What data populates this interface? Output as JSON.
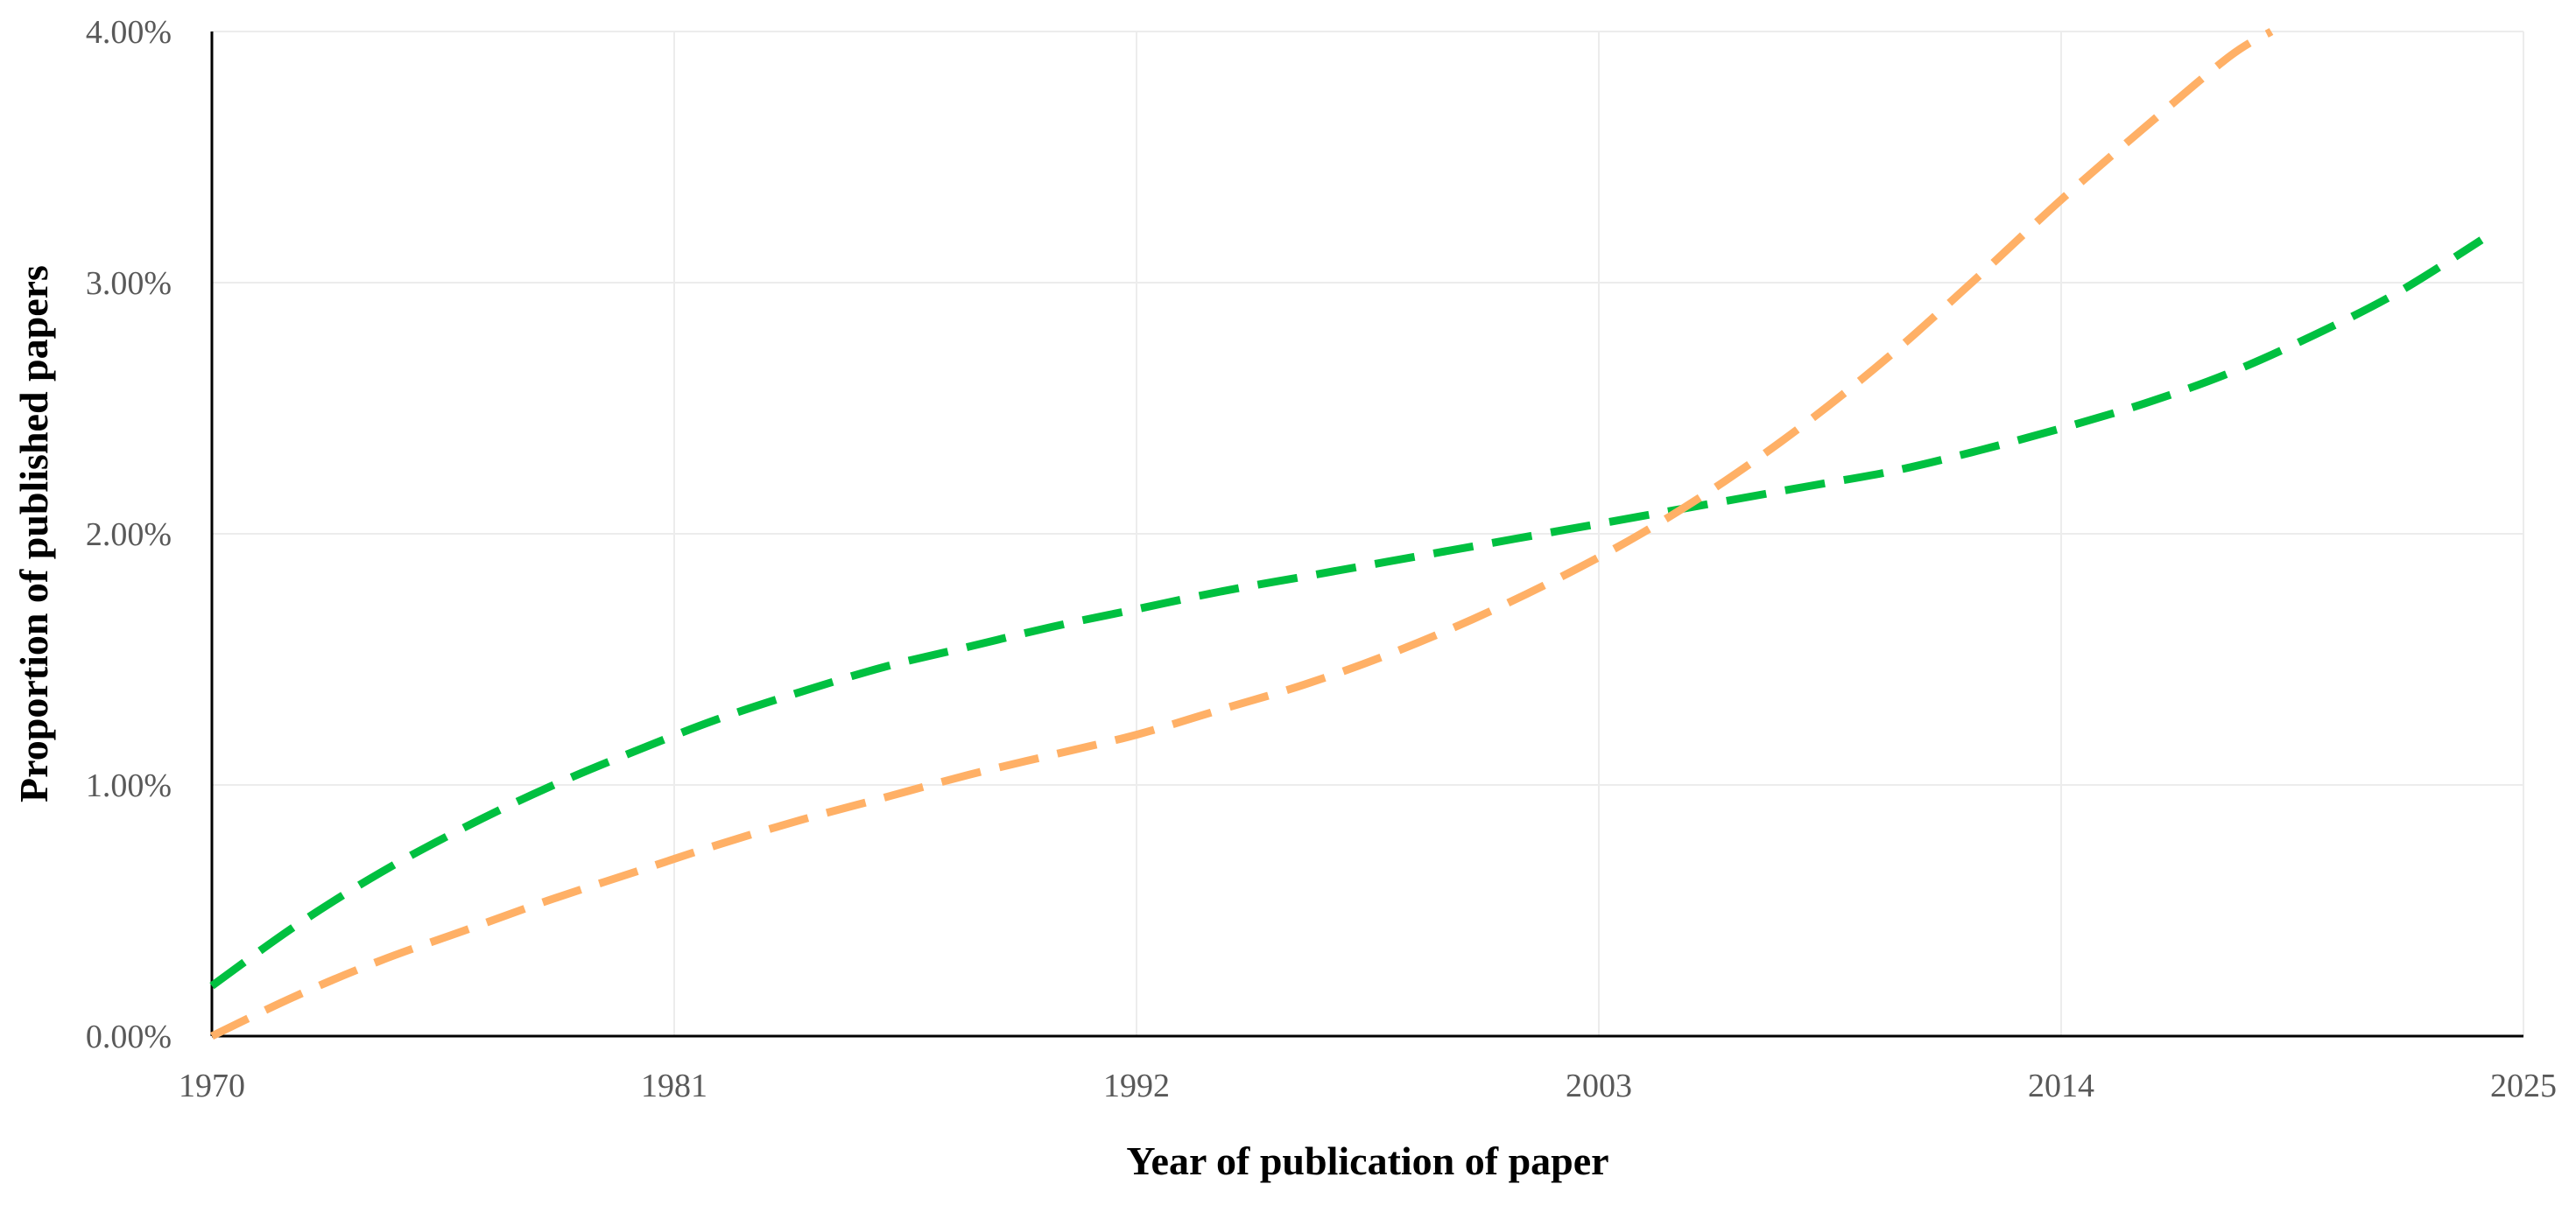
{
  "chart_data": {
    "type": "line",
    "xlabel": "Year of publication of paper",
    "ylabel": "Proportion of published papers",
    "xlim": [
      1970,
      2025
    ],
    "ylim": [
      0,
      0.04
    ],
    "x_ticks": [
      1970,
      1981,
      1992,
      2003,
      2014,
      2025
    ],
    "x_tick_labels": [
      "1970",
      "1981",
      "1992",
      "2003",
      "2014",
      "2025"
    ],
    "y_ticks": [
      0,
      0.01,
      0.02,
      0.03,
      0.04
    ],
    "y_tick_labels": [
      "0.00%",
      "1.00%",
      "2.00%",
      "3.00%",
      "4.00%"
    ],
    "grid": true,
    "series": [
      {
        "color": "#00c040",
        "style": "dashed",
        "x": [
          1970,
          1972,
          1974,
          1976,
          1978,
          1980,
          1982,
          1984,
          1986,
          1988,
          1990,
          1992,
          1994,
          1996,
          1998,
          2000,
          2002,
          2004,
          2006,
          2008,
          2010,
          2012,
          2014,
          2016,
          2018,
          2020,
          2022,
          2024
        ],
        "y": [
          0.002,
          0.0044,
          0.0065,
          0.0083,
          0.0099,
          0.0113,
          0.0126,
          0.0137,
          0.0147,
          0.0155,
          0.0163,
          0.017,
          0.0177,
          0.0183,
          0.0189,
          0.0195,
          0.0201,
          0.0207,
          0.0213,
          0.0219,
          0.0225,
          0.0233,
          0.0242,
          0.0252,
          0.0264,
          0.0279,
          0.0296,
          0.0317
        ]
      },
      {
        "color": "#ffb066",
        "style": "dashed",
        "x": [
          1970,
          1972,
          1974,
          1976,
          1978,
          1980,
          1982,
          1984,
          1986,
          1988,
          1990,
          1992,
          1994,
          1996,
          1998,
          2000,
          2002,
          2004,
          2006,
          2008,
          2010,
          2012,
          2014,
          2016,
          2018,
          2019
        ],
        "y": [
          0.0,
          0.0016,
          0.003,
          0.0042,
          0.0054,
          0.0065,
          0.0076,
          0.0086,
          0.0095,
          0.0104,
          0.0112,
          0.012,
          0.013,
          0.014,
          0.0152,
          0.0166,
          0.0182,
          0.02,
          0.0221,
          0.0245,
          0.0272,
          0.0302,
          0.0333,
          0.0362,
          0.039,
          0.04
        ]
      }
    ]
  }
}
